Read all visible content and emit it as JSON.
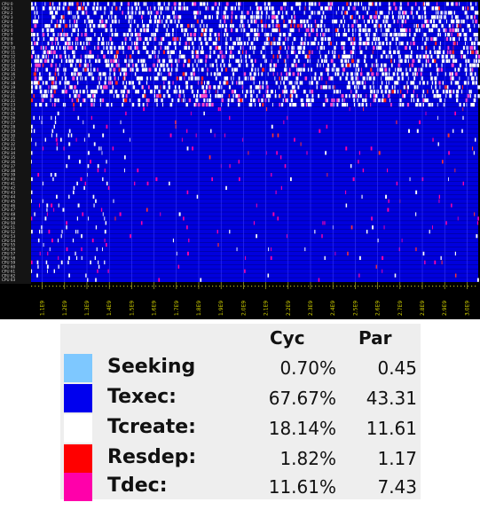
{
  "trace": {
    "row_labels": [
      "CPU 0",
      "CPU 1",
      "CPU 2",
      "CPU 3",
      "CPU 4",
      "CPU 5",
      "CPU 6",
      "CPU 7",
      "CPU 8",
      "CPU 9",
      "CPU 10",
      "CPU 11",
      "CPU 12",
      "CPU 13",
      "CPU 14",
      "CPU 15",
      "CPU 16",
      "CPU 17",
      "CPU 18",
      "CPU 19",
      "CPU 20",
      "CPU 21",
      "CPU 22",
      "CPU 23",
      "CPU 24",
      "CPU 25",
      "CPU 26",
      "CPU 27",
      "CPU 28",
      "CPU 29",
      "CPU 30",
      "CPU 31",
      "CPU 32",
      "CPU 33",
      "CPU 34",
      "CPU 35",
      "CPU 36",
      "CPU 37",
      "CPU 38",
      "CPU 39",
      "CPU 40",
      "CPU 41",
      "CPU 42",
      "CPU 43",
      "CPU 44",
      "CPU 45",
      "CPU 46",
      "CPU 47",
      "CPU 48",
      "CPU 49",
      "CPU 50",
      "CPU 51",
      "CPU 52",
      "CPU 53",
      "CPU 54",
      "CPU 55",
      "CPU 56",
      "CPU 57",
      "CPU 58",
      "CPU 59",
      "CPU 60",
      "CPU 61",
      "CPU 62",
      "CPU 63"
    ],
    "time_labels": [
      "1.1E9",
      "1.2E9",
      "1.3E9",
      "1.4E9",
      "1.5E9",
      "1.6E9",
      "1.7E9",
      "1.8E9",
      "1.9E9",
      "2.0E9",
      "2.1E9",
      "2.2E9",
      "2.3E9",
      "2.4E9",
      "2.5E9",
      "2.6E9",
      "2.7E9",
      "2.8E9",
      "2.9E9",
      "3.0E9"
    ]
  },
  "legend": {
    "header_cyc": "Cyc",
    "header_par": "Par",
    "items": [
      {
        "name": "Seeking",
        "cyc": "0.70%",
        "par": "0.45",
        "color": "#7ec8ff"
      },
      {
        "name": "Texec:",
        "cyc": "67.67%",
        "par": "43.31",
        "color": "#0000ee"
      },
      {
        "name": "Tcreate:",
        "cyc": "18.14%",
        "par": "11.61",
        "color": "#ffffff"
      },
      {
        "name": "Resdep:",
        "cyc": "1.82%",
        "par": "1.17",
        "color": "#ff0000"
      },
      {
        "name": "Tdec:",
        "cyc": "11.61%",
        "par": "7.43",
        "color": "#ff00aa"
      }
    ]
  }
}
